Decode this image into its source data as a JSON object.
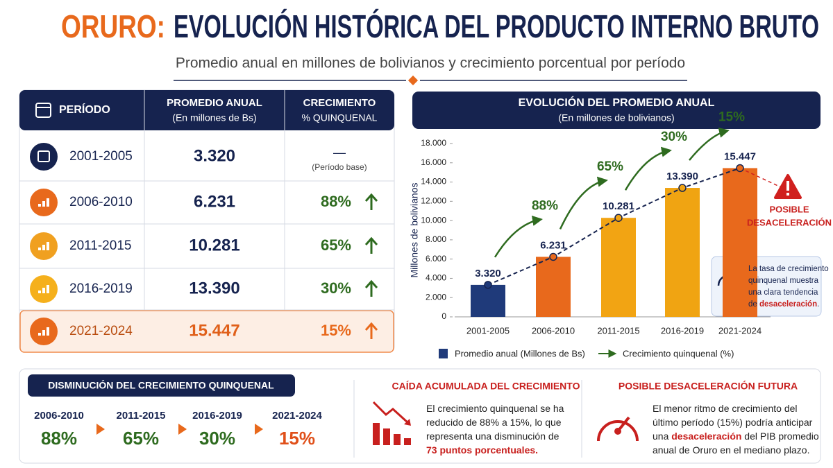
{
  "header": {
    "title_prefix": "ORURO:",
    "title": "EVOLUCIÓN HISTÓRICA DEL PRODUCTO INTERNO BRUTO",
    "subtitle": "Promedio anual en millones de bolivianos y crecimiento porcentual por período"
  },
  "table": {
    "columns": [
      [
        "PERÍODO"
      ],
      [
        "PROMEDIO ANUAL",
        "(En millones de Bs)"
      ],
      [
        "CRECIMIENTO",
        "% QUINQUENAL"
      ]
    ],
    "rows": [
      [
        "2001-2005",
        "3.320",
        "—",
        "(Período base)"
      ],
      [
        "2006-2010",
        "6.231",
        "88%"
      ],
      [
        "2011-2015",
        "10.281",
        "65%"
      ],
      [
        "2016-2019",
        "13.390",
        "30%"
      ],
      [
        "2021-2024",
        "15.447",
        "15%"
      ]
    ]
  },
  "chart_data": {
    "type": "bar",
    "title": "EVOLUCIÓN DEL PROMEDIO ANUAL",
    "subtitle": "(En millones de bolivianos)",
    "y_label": "Millones de bolivianos",
    "categories": [
      "2001-2005",
      "2006-2010",
      "2011-2015",
      "2016-2019",
      "2021-2024"
    ],
    "series": [
      {
        "name": "Promedio anual (Millones de Bs)",
        "color": "#1f3a7a",
        "colors": [
          "#1f3a7a",
          "#e8691c",
          "#f2a413",
          "#f0a412",
          "#e8691c"
        ],
        "values": [
          3320,
          6231,
          10281,
          13390,
          15447
        ],
        "value_labels": [
          "3.320",
          "6.231",
          "10.281",
          "13.390",
          "15.447"
        ]
      }
    ],
    "growth_legend": "Crecimiento quinquenal (%)",
    "growth_color": "#2e6b1f",
    "growth_labels": [
      "88%",
      "65%",
      "30%",
      "15%"
    ],
    "warning": [
      "POSIBLE",
      "DESACELERACIÓN"
    ],
    "note": [
      [
        "La tasa de crecimiento"
      ],
      [
        "quinquenal muestra"
      ],
      [
        "una clara tendencia"
      ],
      [
        "de ",
        "desaceleración",
        "."
      ]
    ],
    "ylim": [
      0,
      18000
    ],
    "yticks": [
      0,
      {
        "value": 2000,
        "label": "2.000"
      },
      {
        "value": 4000,
        "label": "4.000"
      },
      {
        "value": 6000,
        "label": "6.000"
      },
      {
        "value": 8000,
        "label": "8.000"
      },
      {
        "value": 10000,
        "label": "10.000"
      },
      {
        "value": 12000,
        "label": "12.000"
      },
      {
        "value": 14000,
        "label": "14.000"
      },
      {
        "value": 16000,
        "label": "16.000"
      },
      {
        "value": 18000,
        "label": "18.000"
      }
    ]
  },
  "summary": {
    "title": "DISMINUCIÓN DEL CRECIMIENTO QUINQUENAL",
    "items": [
      {
        "period": "2006-2010",
        "growth": "88%"
      },
      {
        "period": "2011-2015",
        "growth": "65%"
      },
      {
        "period": "2016-2019",
        "growth": "30%"
      },
      {
        "period": "2021-2024",
        "growth": "15%"
      }
    ]
  },
  "drop": {
    "title": "CAÍDA ACUMULADA DEL CRECIMIENTO",
    "lines": [
      [
        "El crecimiento quinquenal se ha"
      ],
      [
        "reducido de 88% a 15%, lo que"
      ],
      [
        "representa una disminución de"
      ],
      [
        "73 puntos porcentuales."
      ]
    ]
  },
  "future": {
    "title": "POSIBLE DESACELERACIÓN FUTURA",
    "lines": [
      [
        "El menor ritmo de crecimiento del"
      ],
      [
        "último período (15%) podría anticipar"
      ],
      [
        "una ",
        "desaceleración",
        " del PIB promedio"
      ],
      [
        "anual de Oruro en el mediano plazo."
      ]
    ]
  }
}
